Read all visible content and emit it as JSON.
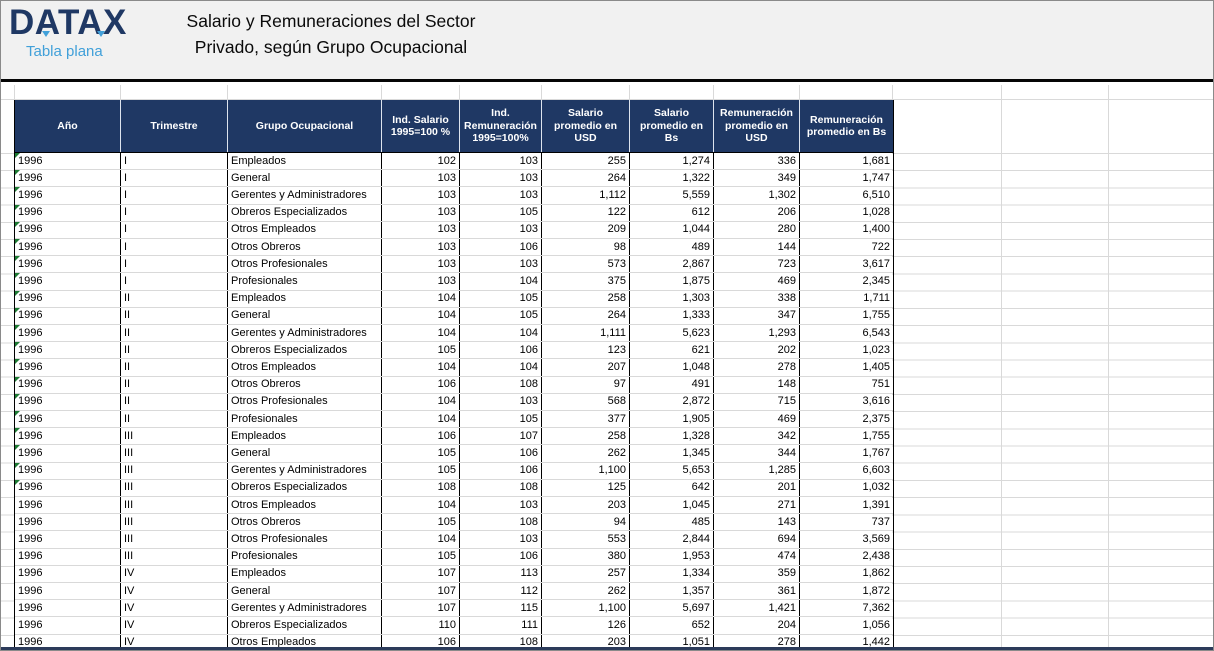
{
  "logo": {
    "brand": "DATAX",
    "subtitle": "Tabla plana"
  },
  "title": {
    "line1": "Salario y Remuneraciones del Sector",
    "line2": "Privado, según Grupo Ocupacional"
  },
  "colors": {
    "header_bg": "#1F3864",
    "logo_navy": "#1F3864",
    "accent_blue": "#41A0D9",
    "flag_green": "#1E7B34",
    "gridline": "#D9D9D9"
  },
  "table": {
    "columns": [
      {
        "id": "ano",
        "label": "Año"
      },
      {
        "id": "trimestre",
        "label": "Trimestre"
      },
      {
        "id": "grupo",
        "label": "Grupo Ocupacional"
      },
      {
        "id": "ind_salario",
        "label": "Ind. Salario 1995=100 %"
      },
      {
        "id": "ind_remuneracion",
        "label": "Ind. Remuneración 1995=100%"
      },
      {
        "id": "salario_usd",
        "label": "Salario promedio en USD"
      },
      {
        "id": "salario_bs",
        "label": "Salario promedio en Bs"
      },
      {
        "id": "remuneracion_usd",
        "label": "Remuneración promedio en USD"
      },
      {
        "id": "remuneracion_bs",
        "label": "Remuneración promedio en Bs"
      }
    ],
    "rows": [
      [
        "1996",
        "I",
        "Empleados",
        "102",
        "103",
        "255",
        "1,274",
        "336",
        "1,681",
        true
      ],
      [
        "1996",
        "I",
        "General",
        "103",
        "103",
        "264",
        "1,322",
        "349",
        "1,747",
        true
      ],
      [
        "1996",
        "I",
        "Gerentes y Administradores",
        "103",
        "103",
        "1,112",
        "5,559",
        "1,302",
        "6,510",
        true
      ],
      [
        "1996",
        "I",
        "Obreros Especializados",
        "103",
        "105",
        "122",
        "612",
        "206",
        "1,028",
        true
      ],
      [
        "1996",
        "I",
        "Otros Empleados",
        "103",
        "103",
        "209",
        "1,044",
        "280",
        "1,400",
        true
      ],
      [
        "1996",
        "I",
        "Otros Obreros",
        "103",
        "106",
        "98",
        "489",
        "144",
        "722",
        true
      ],
      [
        "1996",
        "I",
        "Otros Profesionales",
        "103",
        "103",
        "573",
        "2,867",
        "723",
        "3,617",
        true
      ],
      [
        "1996",
        "I",
        "Profesionales",
        "103",
        "104",
        "375",
        "1,875",
        "469",
        "2,345",
        true
      ],
      [
        "1996",
        "II",
        "Empleados",
        "104",
        "105",
        "258",
        "1,303",
        "338",
        "1,711",
        true
      ],
      [
        "1996",
        "II",
        "General",
        "104",
        "105",
        "264",
        "1,333",
        "347",
        "1,755",
        true
      ],
      [
        "1996",
        "II",
        "Gerentes y Administradores",
        "104",
        "104",
        "1,111",
        "5,623",
        "1,293",
        "6,543",
        true
      ],
      [
        "1996",
        "II",
        "Obreros Especializados",
        "105",
        "106",
        "123",
        "621",
        "202",
        "1,023",
        true
      ],
      [
        "1996",
        "II",
        "Otros Empleados",
        "104",
        "104",
        "207",
        "1,048",
        "278",
        "1,405",
        true
      ],
      [
        "1996",
        "II",
        "Otros Obreros",
        "106",
        "108",
        "97",
        "491",
        "148",
        "751",
        true
      ],
      [
        "1996",
        "II",
        "Otros Profesionales",
        "104",
        "103",
        "568",
        "2,872",
        "715",
        "3,616",
        true
      ],
      [
        "1996",
        "II",
        "Profesionales",
        "104",
        "105",
        "377",
        "1,905",
        "469",
        "2,375",
        true
      ],
      [
        "1996",
        "III",
        "Empleados",
        "106",
        "107",
        "258",
        "1,328",
        "342",
        "1,755",
        true
      ],
      [
        "1996",
        "III",
        "General",
        "105",
        "106",
        "262",
        "1,345",
        "344",
        "1,767",
        true
      ],
      [
        "1996",
        "III",
        "Gerentes y Administradores",
        "105",
        "106",
        "1,100",
        "5,653",
        "1,285",
        "6,603",
        true
      ],
      [
        "1996",
        "III",
        "Obreros Especializados",
        "108",
        "108",
        "125",
        "642",
        "201",
        "1,032",
        true
      ],
      [
        "1996",
        "III",
        "Otros Empleados",
        "104",
        "103",
        "203",
        "1,045",
        "271",
        "1,391",
        false
      ],
      [
        "1996",
        "III",
        "Otros Obreros",
        "105",
        "108",
        "94",
        "485",
        "143",
        "737",
        false
      ],
      [
        "1996",
        "III",
        "Otros Profesionales",
        "104",
        "103",
        "553",
        "2,844",
        "694",
        "3,569",
        false
      ],
      [
        "1996",
        "III",
        "Profesionales",
        "105",
        "106",
        "380",
        "1,953",
        "474",
        "2,438",
        false
      ],
      [
        "1996",
        "IV",
        "Empleados",
        "107",
        "113",
        "257",
        "1,334",
        "359",
        "1,862",
        false
      ],
      [
        "1996",
        "IV",
        "General",
        "107",
        "112",
        "262",
        "1,357",
        "361",
        "1,872",
        false
      ],
      [
        "1996",
        "IV",
        "Gerentes y Administradores",
        "107",
        "115",
        "1,100",
        "5,697",
        "1,421",
        "7,362",
        false
      ],
      [
        "1996",
        "IV",
        "Obreros Especializados",
        "110",
        "111",
        "126",
        "652",
        "204",
        "1,056",
        false
      ],
      [
        "1996",
        "IV",
        "Otros Empleados",
        "106",
        "108",
        "203",
        "1,051",
        "278",
        "1,442",
        false
      ]
    ]
  }
}
